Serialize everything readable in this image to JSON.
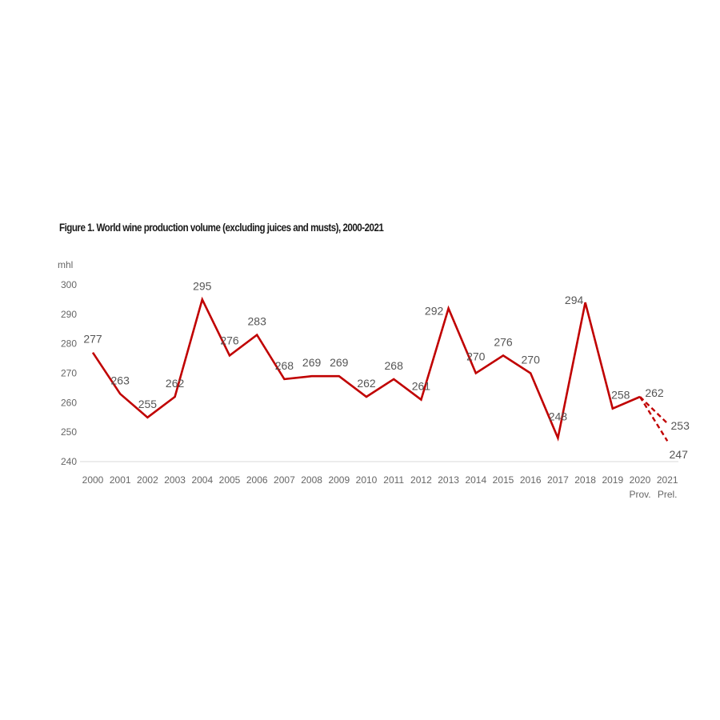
{
  "chart_data": {
    "type": "line",
    "title": "Figure 1. World wine production volume (excluding juices and musts), 2000-2021",
    "ylabel": "mhl",
    "xlabel": "",
    "ylim": [
      240,
      300
    ],
    "yticks": [
      240,
      250,
      260,
      270,
      280,
      290,
      300
    ],
    "grid": false,
    "categories": [
      "2000",
      "2001",
      "2002",
      "2003",
      "2004",
      "2005",
      "2006",
      "2007",
      "2008",
      "2009",
      "2010",
      "2011",
      "2012",
      "2013",
      "2014",
      "2015",
      "2016",
      "2017",
      "2018",
      "2019",
      "2020",
      "2021"
    ],
    "category_sublabels": [
      "",
      "",
      "",
      "",
      "",
      "",
      "",
      "",
      "",
      "",
      "",
      "",
      "",
      "",
      "",
      "",
      "",
      "",
      "",
      "",
      "Prov.",
      "Prel."
    ],
    "series": [
      {
        "values": [
          277,
          263,
          255,
          262,
          295,
          276,
          283,
          268,
          269,
          269,
          262,
          268,
          261,
          292,
          270,
          276,
          270,
          248,
          294,
          258,
          262,
          null
        ],
        "style": "solid",
        "color": "#c00000"
      },
      {
        "style": "dashed",
        "color": "#c00000",
        "estimate_from": "2020",
        "estimate_to": "2021",
        "range_high": 253,
        "range_low": 247
      }
    ],
    "data_labels": [
      "277",
      "263",
      "255",
      "262",
      "295",
      "276",
      "283",
      "268",
      "269",
      "269",
      "262",
      "268",
      "261",
      "292",
      "270",
      "276",
      "270",
      "248",
      "294",
      "258",
      "262"
    ],
    "estimate_labels": [
      "253",
      "247"
    ]
  }
}
